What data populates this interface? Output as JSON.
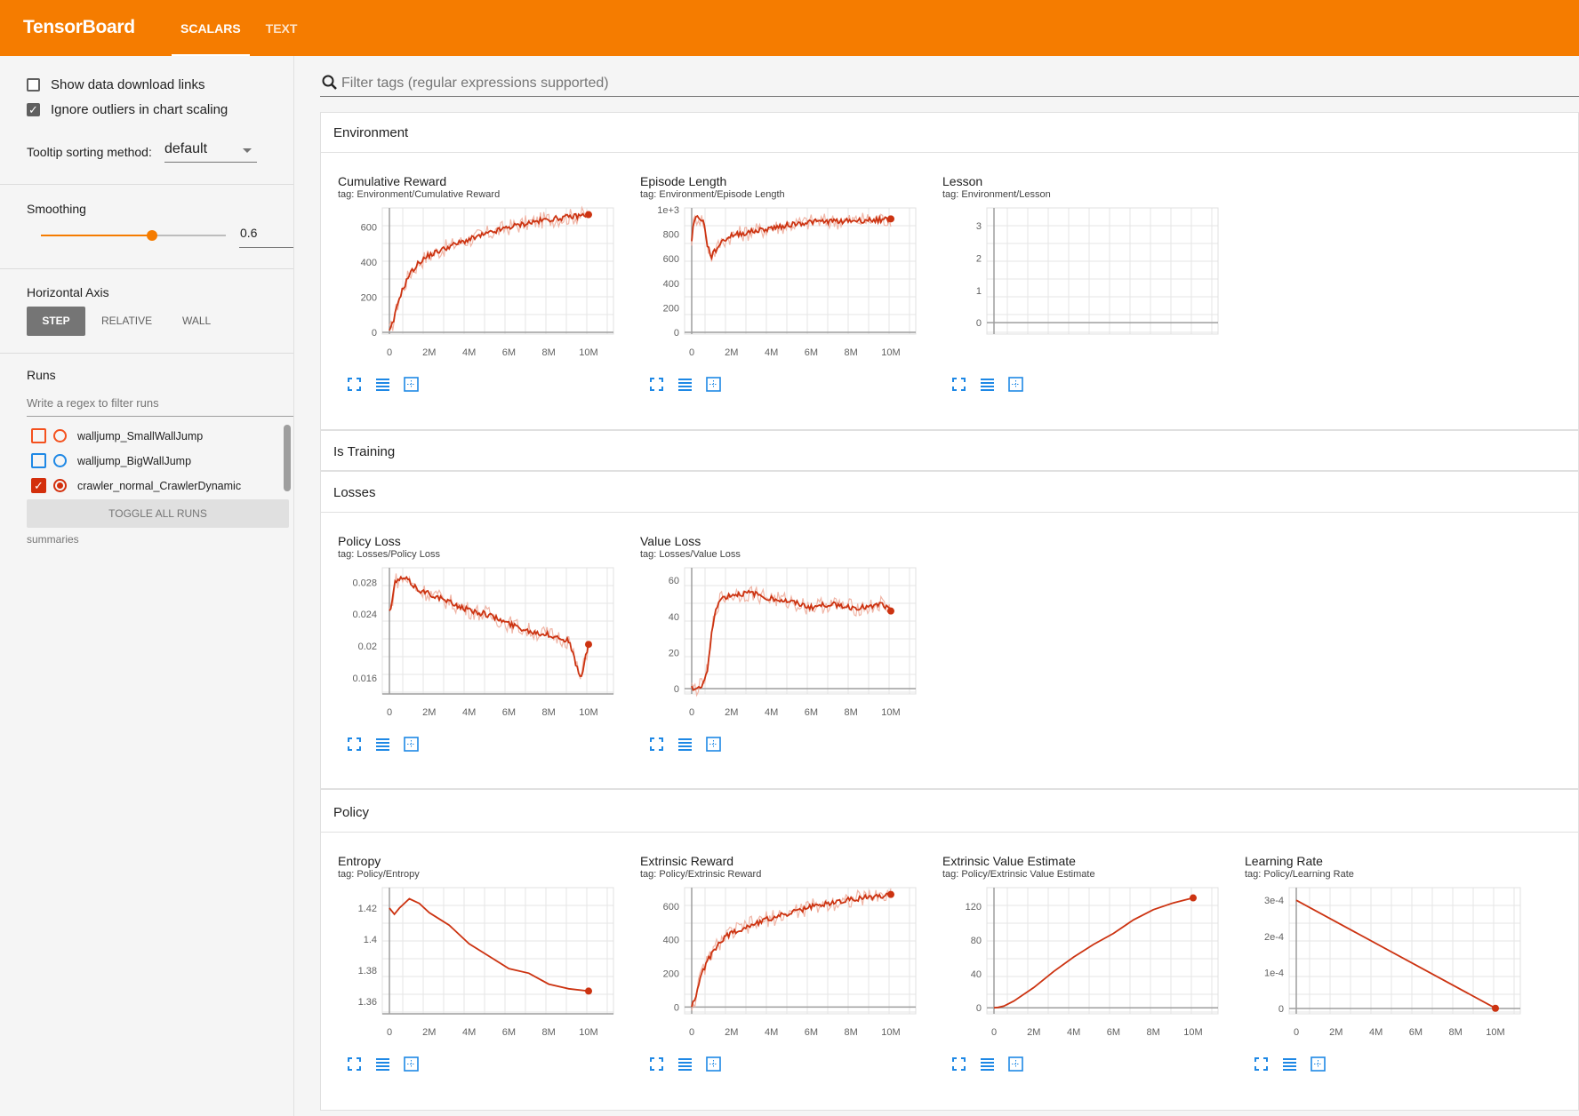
{
  "app": {
    "title": "TensorBoard",
    "tabs": [
      {
        "label": "SCALARS"
      },
      {
        "label": "TEXT"
      }
    ]
  },
  "sidebar": {
    "show_download_label": "Show data download links",
    "ignore_outliers_label": "Ignore outliers in chart scaling",
    "tooltip_label": "Tooltip sorting method:",
    "tooltip_value": "default",
    "smoothing_label": "Smoothing",
    "smoothing_value": "0.6",
    "smoothing_fraction": 0.6,
    "haxis_label": "Horizontal Axis",
    "haxis_buttons": [
      "STEP",
      "RELATIVE",
      "WALL"
    ],
    "runs_label": "Runs",
    "runs_filter_placeholder": "Write a regex to filter runs",
    "runs": [
      {
        "name": "walljump_SmallWallJump",
        "color": "#f4511e",
        "checked": false
      },
      {
        "name": "walljump_BigWallJump",
        "color": "#1e88e5",
        "checked": false
      },
      {
        "name": "crawler_normal_CrawlerDynamic",
        "color": "#d32f0c",
        "checked": true
      }
    ],
    "toggle_all_label": "TOGGLE ALL RUNS",
    "summaries_label": "summaries"
  },
  "search": {
    "placeholder": "Filter tags (regular expressions supported)"
  },
  "categories": [
    {
      "name": "Environment"
    },
    {
      "name": "Is Training"
    },
    {
      "name": "Losses"
    },
    {
      "name": "Policy"
    }
  ],
  "cards": [
    {
      "title": "Cumulative Reward",
      "tag": "tag: Environment/Cumulative Reward"
    },
    {
      "title": "Episode Length",
      "tag": "tag: Environment/Episode Length"
    },
    {
      "title": "Lesson",
      "tag": "tag: Environment/Lesson"
    },
    {
      "title": "Policy Loss",
      "tag": "tag: Losses/Policy Loss"
    },
    {
      "title": "Value Loss",
      "tag": "tag: Losses/Value Loss"
    },
    {
      "title": "Entropy",
      "tag": "tag: Policy/Entropy"
    },
    {
      "title": "Extrinsic Reward",
      "tag": "tag: Policy/Extrinsic Reward"
    },
    {
      "title": "Extrinsic Value Estimate",
      "tag": "tag: Policy/Extrinsic Value Estimate"
    },
    {
      "title": "Learning Rate",
      "tag": "tag: Policy/Learning Rate"
    }
  ],
  "colors": {
    "accent": "#f57c00",
    "series": "#cc3311",
    "series_raw": "#f0b5a6",
    "icon_blue": "#1e88e5"
  },
  "icons": [
    "search-icon",
    "expand-icon",
    "log-scale-icon",
    "fit-domain-icon"
  ],
  "chart_data": [
    {
      "type": "line",
      "title": "Cumulative Reward",
      "xlabels": [
        "0",
        "2M",
        "4M",
        "6M",
        "8M",
        "10M"
      ],
      "ylabels": [
        "0",
        "200",
        "400",
        "600"
      ],
      "xlim": [
        0,
        10000000
      ],
      "ylim": [
        0,
        700
      ],
      "series": [
        {
          "x": [
            0,
            200000,
            500000,
            1000000,
            1500000,
            2000000,
            3000000,
            4000000,
            5000000,
            6000000,
            7000000,
            8000000,
            9000000,
            10000000
          ],
          "values": [
            0,
            60,
            200,
            330,
            400,
            440,
            490,
            530,
            565,
            600,
            625,
            645,
            658,
            672
          ]
        }
      ]
    },
    {
      "type": "line",
      "title": "Episode Length",
      "xlabels": [
        "0",
        "2M",
        "4M",
        "6M",
        "8M",
        "10M"
      ],
      "ylabels": [
        "0",
        "200",
        "400",
        "600",
        "800",
        "1e+3"
      ],
      "xlim": [
        0,
        10000000
      ],
      "ylim": [
        0,
        1000
      ],
      "series": [
        {
          "x": [
            0,
            100000,
            300000,
            600000,
            800000,
            1000000,
            1500000,
            2000000,
            3000000,
            4000000,
            5000000,
            6000000,
            7000000,
            8000000,
            9000000,
            10000000
          ],
          "values": [
            760,
            900,
            950,
            900,
            700,
            620,
            740,
            790,
            820,
            850,
            880,
            900,
            905,
            910,
            915,
            925
          ]
        }
      ]
    },
    {
      "type": "line",
      "title": "Lesson",
      "xlabels": [],
      "ylabels": [
        "0",
        "1",
        "2",
        "3"
      ],
      "ylim": [
        -0.3,
        3.5
      ],
      "series": []
    },
    {
      "type": "line",
      "title": "Policy Loss",
      "xlabels": [
        "0",
        "2M",
        "4M",
        "6M",
        "8M",
        "10M"
      ],
      "ylabels": [
        "0.016",
        "0.02",
        "0.024",
        "0.028"
      ],
      "xlim": [
        0,
        10000000
      ],
      "ylim": [
        0.0142,
        0.0296
      ],
      "series": [
        {
          "x": [
            0,
            100000,
            300000,
            800000,
            1500000,
            2000000,
            3000000,
            4000000,
            5000000,
            6000000,
            7000000,
            8000000,
            9000000,
            9600000,
            10000000
          ],
          "values": [
            0.0243,
            0.025,
            0.0282,
            0.0285,
            0.027,
            0.0266,
            0.0255,
            0.0245,
            0.0239,
            0.0228,
            0.0219,
            0.0214,
            0.0207,
            0.0158,
            0.0202
          ]
        }
      ]
    },
    {
      "type": "line",
      "title": "Value Loss",
      "xlabels": [
        "0",
        "2M",
        "4M",
        "6M",
        "8M",
        "10M"
      ],
      "ylabels": [
        "0",
        "20",
        "40",
        "60"
      ],
      "xlim": [
        0,
        10000000
      ],
      "ylim": [
        -2,
        66
      ],
      "series": [
        {
          "x": [
            0,
            500000,
            800000,
            1000000,
            1200000,
            1500000,
            2000000,
            3000000,
            4000000,
            5000000,
            6000000,
            7000000,
            8000000,
            9000000,
            9500000,
            10000000
          ],
          "values": [
            0,
            1,
            10,
            30,
            45,
            50,
            52,
            53,
            50,
            48,
            45,
            47,
            45,
            45,
            47,
            43
          ]
        }
      ]
    },
    {
      "type": "line",
      "title": "Entropy",
      "xlabels": [
        "0",
        "2M",
        "4M",
        "6M",
        "8M",
        "10M"
      ],
      "ylabels": [
        "1.36",
        "1.38",
        "1.4",
        "1.42"
      ],
      "xlim": [
        0,
        10000000
      ],
      "ylim": [
        1.353,
        1.432
      ],
      "series": [
        {
          "x": [
            0,
            250000,
            500000,
            1000000,
            1500000,
            2000000,
            2500000,
            3000000,
            4000000,
            5000000,
            6000000,
            7000000,
            8000000,
            9000000,
            10000000
          ],
          "values": [
            1.42,
            1.416,
            1.42,
            1.426,
            1.423,
            1.417,
            1.413,
            1.409,
            1.397,
            1.389,
            1.381,
            1.378,
            1.371,
            1.368,
            1.3665
          ]
        }
      ]
    },
    {
      "type": "line",
      "title": "Extrinsic Reward",
      "xlabels": [
        "0",
        "2M",
        "4M",
        "6M",
        "8M",
        "10M"
      ],
      "ylabels": [
        "0",
        "200",
        "400",
        "600"
      ],
      "xlim": [
        0,
        10000000
      ],
      "ylim": [
        -30,
        700
      ],
      "series": [
        {
          "x": [
            0,
            200000,
            500000,
            1000000,
            1500000,
            2000000,
            3000000,
            4000000,
            5000000,
            6000000,
            7000000,
            8000000,
            9000000,
            10000000
          ],
          "values": [
            0,
            60,
            200,
            320,
            400,
            440,
            490,
            530,
            560,
            595,
            620,
            640,
            655,
            670
          ]
        }
      ]
    },
    {
      "type": "line",
      "title": "Extrinsic Value Estimate",
      "xlabels": [
        "0",
        "2M",
        "4M",
        "6M",
        "8M",
        "10M"
      ],
      "ylabels": [
        "0",
        "40",
        "80",
        "120"
      ],
      "xlim": [
        0,
        10000000
      ],
      "ylim": [
        -5,
        140
      ],
      "series": [
        {
          "x": [
            0,
            200000,
            500000,
            1000000,
            2000000,
            3000000,
            4000000,
            5000000,
            6000000,
            7000000,
            8000000,
            9000000,
            10000000
          ],
          "values": [
            0,
            0.5,
            2,
            8,
            24,
            43,
            60,
            75,
            88,
            104,
            116,
            124,
            130
          ]
        }
      ]
    },
    {
      "type": "line",
      "title": "Learning Rate",
      "xlabels": [
        "0",
        "2M",
        "4M",
        "6M",
        "8M",
        "10M"
      ],
      "ylabels": [
        "0",
        "1e-4",
        "2e-4",
        "3e-4"
      ],
      "xlim": [
        0,
        10000000
      ],
      "ylim": [
        -1e-05,
        0.00033
      ],
      "series": [
        {
          "x": [
            0,
            10000000
          ],
          "values": [
            0.0003,
            5e-07
          ]
        }
      ]
    }
  ]
}
